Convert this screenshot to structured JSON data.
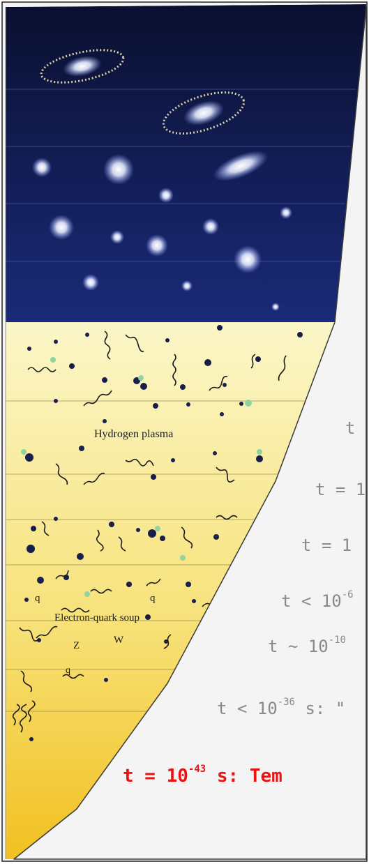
{
  "scene": {
    "colors": {
      "sky_top": "#0a1030",
      "sky_bottom": "#1a2a78",
      "plasma_light": "#fbf6c8",
      "plasma_mid": "#f7e27a",
      "plasma_deep": "#f2c020",
      "paper": "#ffffff",
      "label_grey": "#8a8a8a",
      "highlight_red": "#ee1111"
    },
    "region_labels": {
      "hydrogen": "Hydrogen plasma",
      "soup": "Electron-quark soup"
    },
    "particle_labels": [
      "q",
      "q",
      "q",
      "Z",
      "W"
    ]
  },
  "timeline": {
    "labels": [
      {
        "prefix": "t",
        "exp": "",
        "suffix": ""
      },
      {
        "prefix": "t = 1",
        "exp": "",
        "suffix": ""
      },
      {
        "prefix": "t = 1",
        "exp": "",
        "suffix": ""
      },
      {
        "prefix": "t < 10",
        "exp": "-6",
        "suffix": ""
      },
      {
        "prefix": "t ~ 10",
        "exp": "-10",
        "suffix": ""
      },
      {
        "prefix": "t < 10",
        "exp": "-36",
        "suffix": " s: \""
      },
      {
        "prefix": "t = 10",
        "exp": "-43",
        "suffix": " s: Tem"
      }
    ]
  }
}
